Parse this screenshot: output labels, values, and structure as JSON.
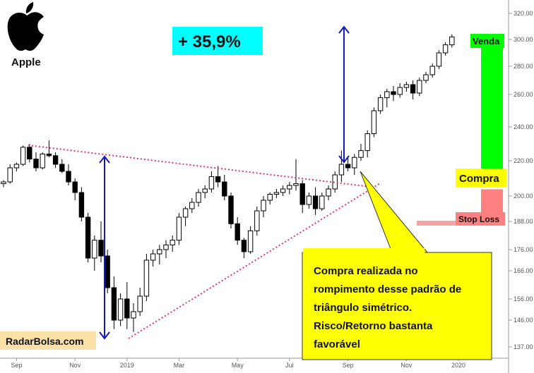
{
  "header": {
    "brand": "Apple",
    "logo_icon": "apple-logo-icon"
  },
  "gain_badge": {
    "text": "+ 35,9%",
    "bg": "#00ffff"
  },
  "source": {
    "label": "RadarBolsa.com",
    "bg": "#fbe0a8"
  },
  "trade_levels": {
    "sell": {
      "label": "Venda",
      "price": 300,
      "color": "#00ff00"
    },
    "buy": {
      "label": "Compra",
      "price": 207,
      "color": "#ffff00"
    },
    "stop": {
      "label": "Stop Loss",
      "price": 188,
      "color": "#ff8080"
    }
  },
  "note": {
    "lines": [
      "Compra realizada no",
      "rompimento desse padrão  de",
      "triângulo simétrico.",
      "Risco/Retorno  bastanta",
      "favorável"
    ],
    "bg": "#ffff00"
  },
  "chart_data": {
    "type": "candlestick",
    "ylim": [
      137,
      324
    ],
    "y_ticks": [
      137,
      146,
      156,
      166,
      176,
      188,
      200,
      220,
      240,
      260,
      280,
      300,
      320
    ],
    "y_tick_labels": [
      "137.00",
      "146.00",
      "156.00",
      "166.00",
      "176.00",
      "188.00",
      "200.00",
      "220.00",
      "240.00",
      "260.00",
      "280.00",
      "300.00",
      "320.00"
    ],
    "x_ticks": [
      {
        "label": "Sep",
        "week": 2
      },
      {
        "label": "Nov",
        "week": 11
      },
      {
        "label": "2019",
        "week": 19
      },
      {
        "label": "Mar",
        "week": 27
      },
      {
        "label": "May",
        "week": 36
      },
      {
        "label": "Jul",
        "week": 44
      },
      {
        "label": "Sep",
        "week": 53
      },
      {
        "label": "Nov",
        "week": 62
      },
      {
        "label": "2020",
        "week": 70
      }
    ],
    "candles": [
      [
        207,
        209,
        205,
        208
      ],
      [
        208,
        218,
        207,
        216
      ],
      [
        216,
        219,
        214,
        218
      ],
      [
        218,
        229,
        217,
        228
      ],
      [
        228,
        230,
        219,
        221
      ],
      [
        221,
        225,
        214,
        216
      ],
      [
        216,
        225,
        215,
        224
      ],
      [
        224,
        232,
        222,
        223
      ],
      [
        223,
        225,
        216,
        218
      ],
      [
        218,
        221,
        213,
        214
      ],
      [
        214,
        218,
        206,
        208
      ],
      [
        208,
        210,
        198,
        202
      ],
      [
        202,
        205,
        188,
        190
      ],
      [
        190,
        192,
        170,
        172
      ],
      [
        172,
        182,
        166,
        180
      ],
      [
        180,
        188,
        170,
        173
      ],
      [
        173,
        176,
        158,
        160
      ],
      [
        160,
        164,
        143,
        146
      ],
      [
        146,
        158,
        144,
        156
      ],
      [
        156,
        162,
        143,
        147
      ],
      [
        147,
        154,
        142,
        150
      ],
      [
        150,
        160,
        148,
        157
      ],
      [
        157,
        174,
        155,
        171
      ],
      [
        171,
        176,
        168,
        174
      ],
      [
        174,
        178,
        169,
        176
      ],
      [
        176,
        180,
        172,
        178
      ],
      [
        178,
        182,
        175,
        180
      ],
      [
        180,
        192,
        178,
        190
      ],
      [
        190,
        195,
        186,
        194
      ],
      [
        194,
        199,
        192,
        197
      ],
      [
        197,
        204,
        195,
        202
      ],
      [
        202,
        206,
        199,
        204
      ],
      [
        204,
        214,
        202,
        211
      ],
      [
        211,
        217,
        205,
        208
      ],
      [
        208,
        212,
        198,
        200
      ],
      [
        200,
        202,
        185,
        187
      ],
      [
        187,
        190,
        178,
        180
      ],
      [
        180,
        181,
        172,
        175
      ],
      [
        175,
        186,
        174,
        184
      ],
      [
        184,
        195,
        182,
        193
      ],
      [
        193,
        200,
        190,
        198
      ],
      [
        198,
        202,
        196,
        201
      ],
      [
        201,
        204,
        199,
        202
      ],
      [
        202,
        206,
        200,
        204
      ],
      [
        204,
        208,
        201,
        206
      ],
      [
        206,
        221,
        203,
        207
      ],
      [
        207,
        209,
        192,
        196
      ],
      [
        196,
        202,
        194,
        200
      ],
      [
        200,
        205,
        191,
        194
      ],
      [
        194,
        202,
        193,
        200
      ],
      [
        200,
        206,
        198,
        204
      ],
      [
        204,
        214,
        202,
        212
      ],
      [
        212,
        226,
        208,
        218
      ],
      [
        218,
        222,
        214,
        216
      ],
      [
        216,
        224,
        212,
        222
      ],
      [
        222,
        230,
        220,
        226
      ],
      [
        226,
        238,
        222,
        236
      ],
      [
        236,
        252,
        234,
        250
      ],
      [
        250,
        260,
        248,
        258
      ],
      [
        258,
        264,
        252,
        262
      ],
      [
        262,
        266,
        256,
        260
      ],
      [
        260,
        268,
        258,
        265
      ],
      [
        265,
        269,
        262,
        267
      ],
      [
        267,
        270,
        257,
        261
      ],
      [
        261,
        272,
        259,
        270
      ],
      [
        270,
        276,
        268,
        274
      ],
      [
        274,
        282,
        272,
        280
      ],
      [
        280,
        292,
        278,
        290
      ],
      [
        290,
        298,
        288,
        296
      ],
      [
        296,
        304,
        294,
        302
      ]
    ]
  }
}
